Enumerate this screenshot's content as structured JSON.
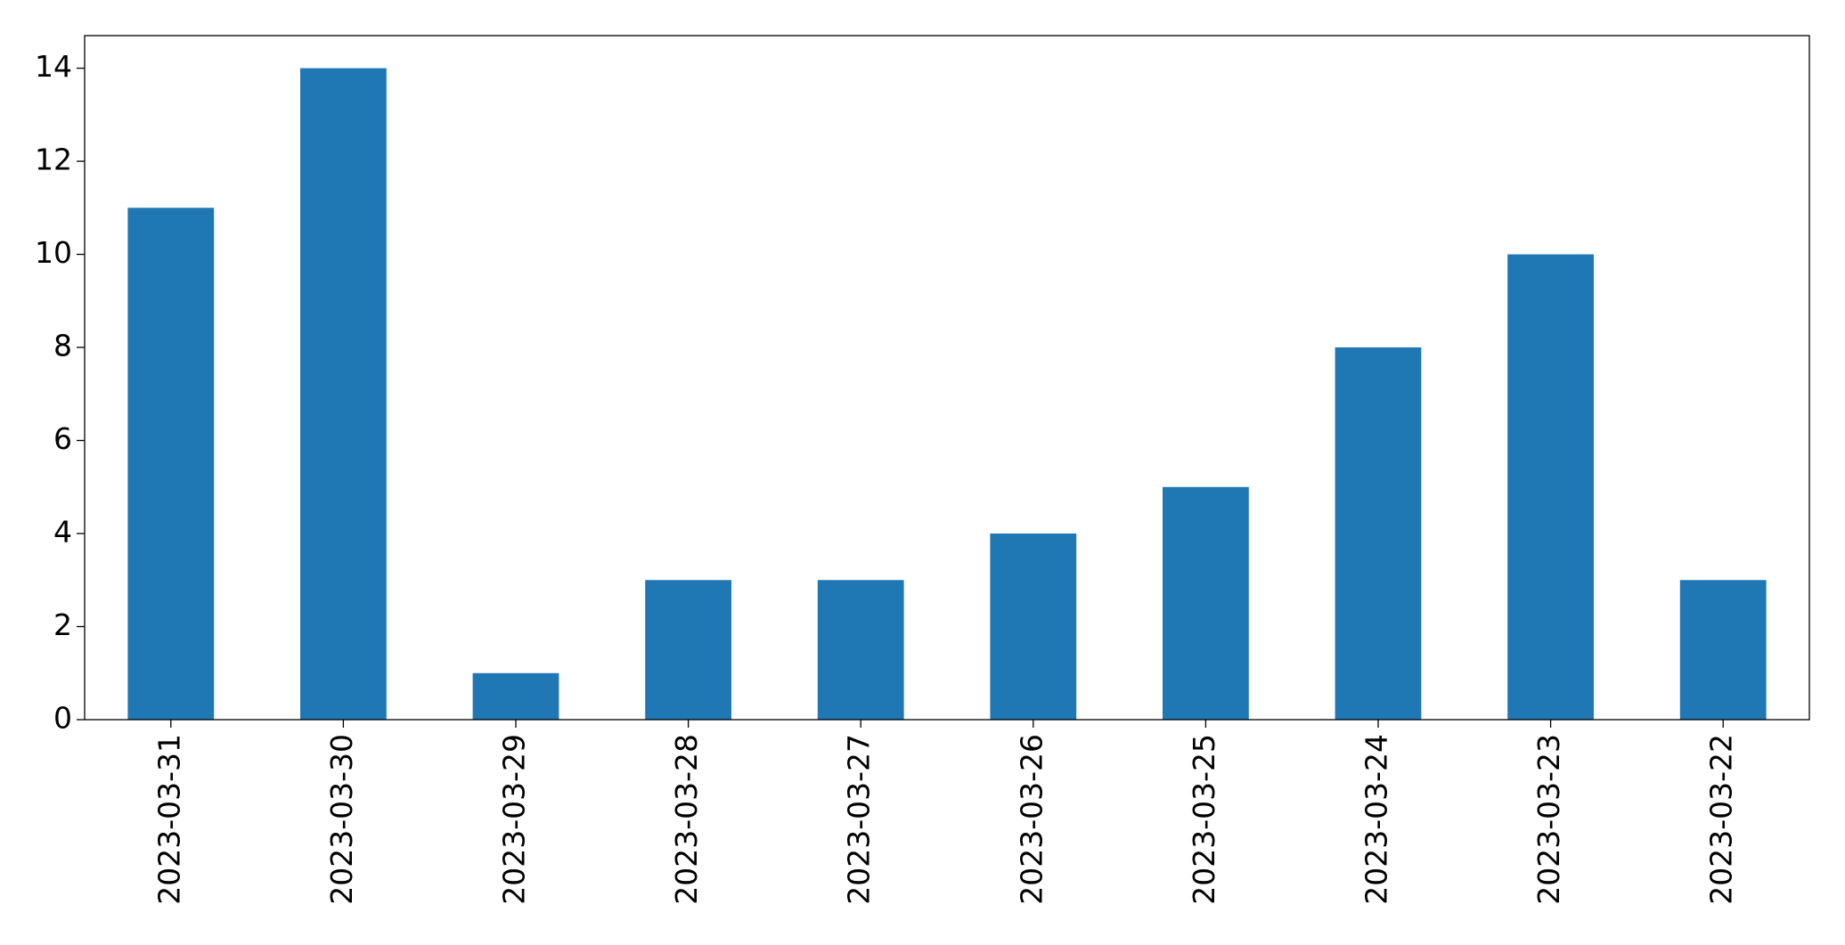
{
  "chart_data": {
    "type": "bar",
    "categories": [
      "2023-03-31",
      "2023-03-30",
      "2023-03-29",
      "2023-03-28",
      "2023-03-27",
      "2023-03-26",
      "2023-03-25",
      "2023-03-24",
      "2023-03-23",
      "2023-03-22"
    ],
    "values": [
      11,
      14,
      1,
      3,
      3,
      4,
      5,
      8,
      10,
      3
    ],
    "color": "#1f77b4",
    "ylim": [
      0,
      14.7
    ],
    "yticks": [
      0,
      2,
      4,
      6,
      8,
      10,
      12,
      14
    ],
    "grid": false
  }
}
